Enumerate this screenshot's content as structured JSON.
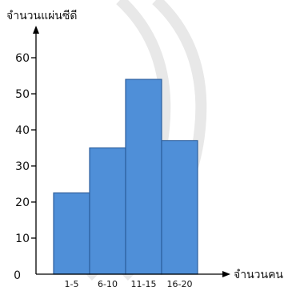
{
  "chart_data": {
    "type": "bar",
    "ylabel": "จำนวนแผ่นซีดี",
    "xlabel": "จำนวนคน",
    "categories": [
      "1-5",
      "6-10",
      "11-15",
      "16-20"
    ],
    "values": [
      22.5,
      35,
      54,
      37
    ],
    "ylim": [
      0,
      60
    ],
    "yticks": [
      0,
      10,
      20,
      30,
      40,
      50,
      60
    ],
    "grid": false,
    "legend": "none",
    "bar_color": "#4f8fd8",
    "bar_edge_color": "#2c5f9e",
    "watermark_color": "#e8e8e8"
  }
}
